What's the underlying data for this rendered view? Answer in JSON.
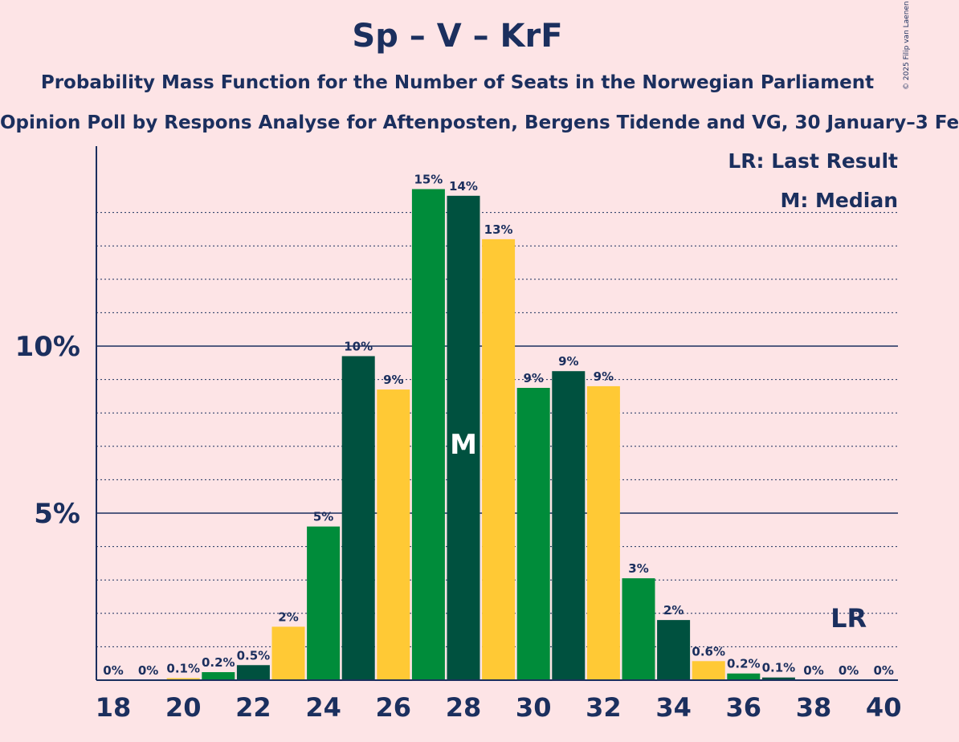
{
  "title": "Sp – V – KrF",
  "subtitle": "Probability Mass Function for the Number of Seats in the Norwegian Parliament",
  "poll": "Opinion Poll by Respons Analyse for Aftenposten, Bergens Tidende and VG, 30 January–3 Fe",
  "copyright": "© 2025 Filip van Laenen",
  "legend": {
    "last_result": "LR: Last Result",
    "median": "M: Median"
  },
  "markers": {
    "median_label": "M",
    "median_seat": 28,
    "last_result_label": "LR",
    "last_result_seat": 39
  },
  "colors": {
    "background": "#fde4e6",
    "text": "#1b2f5e",
    "green": "#008c3a",
    "dark_green": "#00513f",
    "yellow": "#ffc935"
  },
  "chart_data": {
    "type": "bar",
    "categories": [
      18,
      19,
      20,
      21,
      22,
      23,
      24,
      25,
      26,
      27,
      28,
      29,
      30,
      31,
      32,
      33,
      34,
      35,
      36,
      37,
      38,
      39,
      40
    ],
    "values": [
      0,
      0,
      0.06,
      0.24,
      0.45,
      1.6,
      4.6,
      9.7,
      8.7,
      14.7,
      14.5,
      13.2,
      8.75,
      9.25,
      8.8,
      3.05,
      1.8,
      0.57,
      0.2,
      0.08,
      0,
      0,
      0
    ],
    "labels": [
      "0%",
      "0%",
      "0.1%",
      "0.2%",
      "0.5%",
      "2%",
      "5%",
      "10%",
      "9%",
      "15%",
      "14%",
      "13%",
      "9%",
      "9%",
      "9%",
      "3%",
      "2%",
      "0.6%",
      "0.2%",
      "0.1%",
      "0%",
      "0%",
      "0%"
    ],
    "bar_colors": [
      "green",
      "dark_green",
      "yellow",
      "green",
      "dark_green",
      "yellow",
      "green",
      "dark_green",
      "yellow",
      "green",
      "dark_green",
      "yellow",
      "green",
      "dark_green",
      "yellow",
      "green",
      "dark_green",
      "yellow",
      "green",
      "dark_green",
      "yellow",
      "green",
      "dark_green"
    ],
    "x_ticks": [
      18,
      20,
      22,
      24,
      26,
      28,
      30,
      32,
      34,
      36,
      38,
      40
    ],
    "y_ticks": [
      {
        "value": 5,
        "label": "5%"
      },
      {
        "value": 10,
        "label": "10%"
      }
    ],
    "ylim": [
      0,
      16
    ]
  }
}
